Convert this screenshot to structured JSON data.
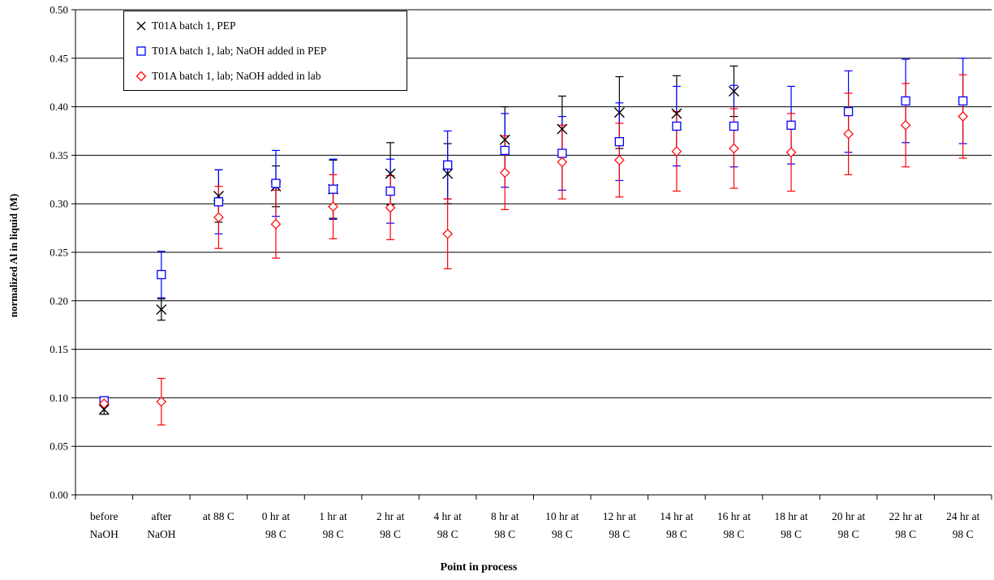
{
  "chart_data": {
    "type": "scatter",
    "title": "",
    "xlabel": "Point in process",
    "ylabel": "normalized Al in liquid (M)",
    "ylim": [
      0,
      0.5
    ],
    "yticks": [
      "0.00",
      "0.05",
      "0.10",
      "0.15",
      "0.20",
      "0.25",
      "0.30",
      "0.35",
      "0.40",
      "0.45",
      "0.50"
    ],
    "grid": "horizontal",
    "legend_position": "top-left",
    "categories": [
      [
        "before",
        "NaOH"
      ],
      [
        "after",
        "NaOH"
      ],
      [
        "at 88 C",
        ""
      ],
      [
        "0 hr at",
        "98 C"
      ],
      [
        "1 hr at",
        "98 C"
      ],
      [
        "2 hr at",
        "98 C"
      ],
      [
        "4 hr at",
        "98 C"
      ],
      [
        "8 hr at",
        "98 C"
      ],
      [
        "10 hr at",
        "98 C"
      ],
      [
        "12 hr at",
        "98 C"
      ],
      [
        "14 hr at",
        "98 C"
      ],
      [
        "16 hr at",
        "98 C"
      ],
      [
        "18 hr at",
        "98 C"
      ],
      [
        "20 hr at",
        "98 C"
      ],
      [
        "22 hr at",
        "98 C"
      ],
      [
        "24 hr at",
        "98 C"
      ]
    ],
    "series": [
      {
        "name": "T01A batch 1, PEP",
        "color": "#000000",
        "marker": "x",
        "values": [
          0.088,
          0.191,
          0.308,
          0.318,
          0.315,
          0.331,
          0.331,
          0.366,
          0.377,
          0.394,
          0.393,
          0.416,
          null,
          null,
          null,
          null
        ],
        "error": [
          0.005,
          0.011,
          0.027,
          0.021,
          0.03,
          0.032,
          0.031,
          0.034,
          0.034,
          0.037,
          0.039,
          0.026,
          null,
          null,
          null,
          null
        ]
      },
      {
        "name": "T01A batch 1, lab; NaOH added in PEP",
        "color": "#0000ff",
        "marker": "square",
        "values": [
          0.097,
          0.227,
          0.302,
          0.321,
          0.315,
          0.313,
          0.34,
          0.355,
          0.352,
          0.364,
          0.38,
          0.38,
          0.381,
          0.395,
          0.406,
          0.406
        ],
        "error": [
          0.004,
          0.024,
          0.033,
          0.034,
          0.031,
          0.033,
          0.035,
          0.038,
          0.038,
          0.04,
          0.041,
          0.042,
          0.04,
          0.042,
          0.043,
          0.044
        ]
      },
      {
        "name": "T01A batch 1, lab; NaOH added in lab",
        "color": "#ff0000",
        "marker": "diamond",
        "values": [
          0.094,
          0.096,
          0.286,
          0.279,
          0.297,
          0.296,
          0.269,
          0.332,
          0.343,
          0.345,
          0.354,
          0.357,
          0.353,
          0.372,
          0.381,
          0.39
        ],
        "error": [
          0.002,
          0.024,
          0.032,
          0.035,
          0.033,
          0.033,
          0.036,
          0.038,
          0.038,
          0.038,
          0.041,
          0.041,
          0.04,
          0.042,
          0.043,
          0.043
        ]
      }
    ]
  }
}
